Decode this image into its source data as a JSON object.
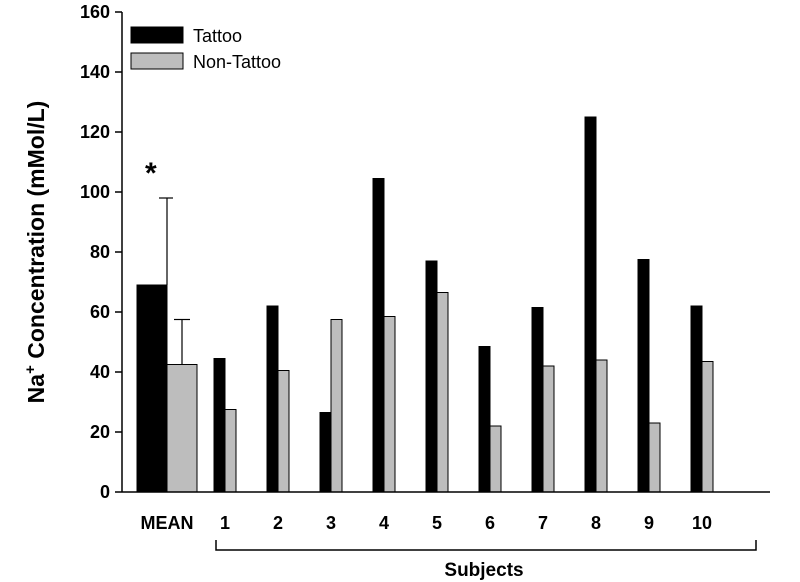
{
  "chart_data": {
    "type": "bar",
    "ylabel_main": "Na",
    "ylabel_sup": "+",
    "ylabel_rest": " Concentration (mMol/L)",
    "ylim": [
      0,
      160
    ],
    "yticks": [
      "0",
      "20",
      "40",
      "60",
      "80",
      "100",
      "120",
      "140",
      "160"
    ],
    "categories": [
      "MEAN",
      "1",
      "2",
      "3",
      "4",
      "5",
      "6",
      "7",
      "8",
      "9",
      "10"
    ],
    "series": [
      {
        "name": "Tattoo",
        "color": "#000000",
        "values": [
          69,
          44.5,
          62,
          26.5,
          104.5,
          77,
          48.5,
          61.5,
          125,
          77.5,
          62
        ]
      },
      {
        "name": "Non-Tattoo",
        "color": "#bdbdbd",
        "values": [
          42.5,
          27.5,
          40.5,
          57.5,
          58.5,
          66.5,
          22,
          42,
          44,
          23,
          43.5
        ]
      }
    ],
    "error_bars": {
      "Tattoo": [
        29,
        null,
        null,
        null,
        null,
        null,
        null,
        null,
        null,
        null,
        null
      ],
      "Non-Tattoo": [
        15,
        null,
        null,
        null,
        null,
        null,
        null,
        null,
        null,
        null,
        null
      ]
    },
    "annotation": "*",
    "group_label": "Subjects",
    "legend_position": "top-left",
    "grid": false
  }
}
